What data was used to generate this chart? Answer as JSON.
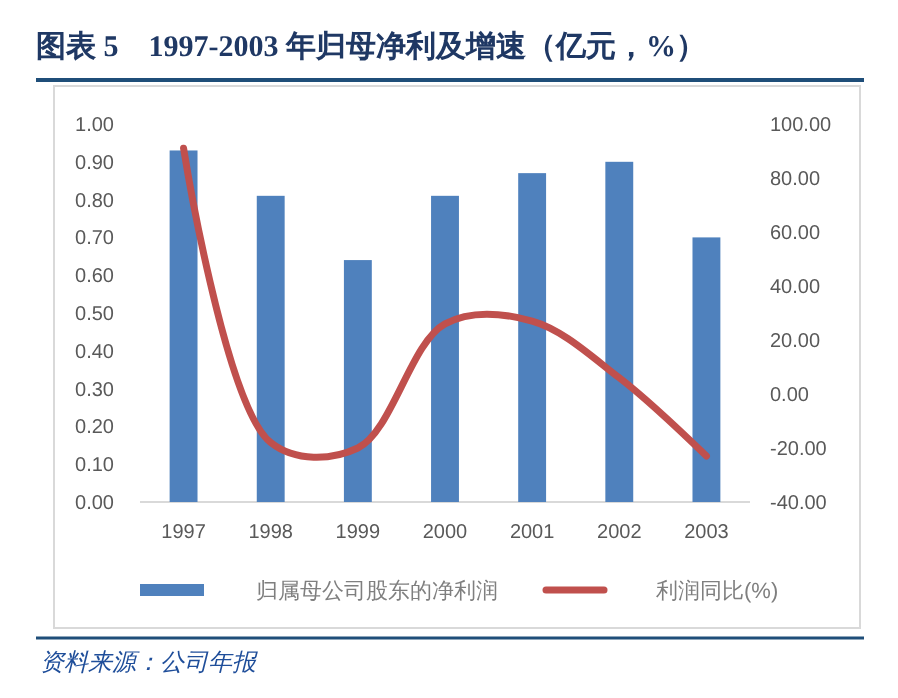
{
  "chart_data": {
    "type": "bar",
    "title": "图表 5　1997-2003 年归母净利及增速（亿元，%）",
    "annotations": [
      "资料来源：公司年报"
    ],
    "categories": [
      "1997",
      "1998",
      "1999",
      "2000",
      "2001",
      "2002",
      "2003"
    ],
    "series": [
      {
        "name": "归属母公司股东的净利润",
        "color": "#4f81bd",
        "values": [
          0.93,
          0.81,
          0.64,
          0.81,
          0.87,
          0.9,
          0.7
        ]
      },
      {
        "name": "利润同比(%)",
        "type": "line",
        "axis": "y2",
        "color": "#c0504d",
        "values": [
          91,
          -18,
          -20,
          26,
          27,
          6,
          -23
        ]
      }
    ],
    "ylim": [
      0,
      1
    ],
    "yticks": [
      {
        "value": 0,
        "label": "0.00"
      },
      {
        "value": 0.1,
        "label": "0.10"
      },
      {
        "value": 0.2,
        "label": "0.20"
      },
      {
        "value": 0.3,
        "label": "0.30"
      },
      {
        "value": 0.4,
        "label": "0.40"
      },
      {
        "value": 0.5,
        "label": "0.50"
      },
      {
        "value": 0.6,
        "label": "0.60"
      },
      {
        "value": 0.7,
        "label": "0.70"
      },
      {
        "value": 0.8,
        "label": "0.80"
      },
      {
        "value": 0.9,
        "label": "0.90"
      },
      {
        "value": 1,
        "label": "1.00"
      }
    ],
    "y2lim": [
      -40,
      100
    ],
    "y2ticks": [
      {
        "value": -40,
        "label": "-40.00"
      },
      {
        "value": -20,
        "label": "-20.00"
      },
      {
        "value": 0,
        "label": "0.00"
      },
      {
        "value": 20,
        "label": "20.00"
      },
      {
        "value": 40,
        "label": "40.00"
      },
      {
        "value": 60,
        "label": "60.00"
      },
      {
        "value": 80,
        "label": "80.00"
      },
      {
        "value": 100,
        "label": "100.00"
      }
    ],
    "legend": "bottom"
  }
}
